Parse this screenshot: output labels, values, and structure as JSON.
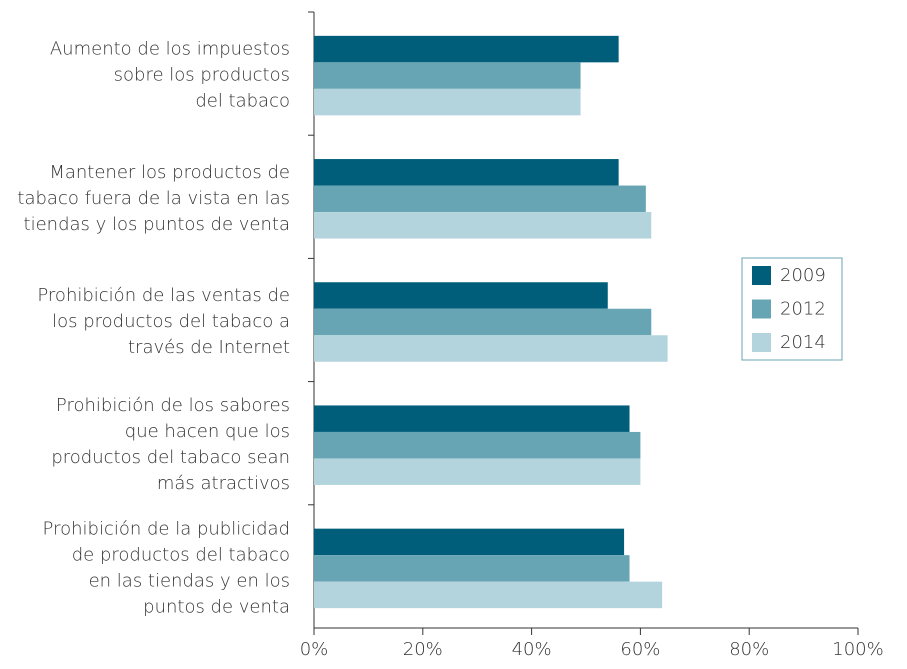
{
  "chart_data": {
    "type": "hbar",
    "categories": [
      [
        "Aumento de los impuestos",
        "sobre los productos",
        "del tabaco"
      ],
      [
        "Mantener los productos de",
        "tabaco fuera de la vista en las",
        "tiendas y los puntos de venta"
      ],
      [
        "Prohibición de las ventas de",
        "los productos del tabaco a",
        "través de Internet"
      ],
      [
        "Prohibición de los sabores",
        "que hacen que los",
        "productos del tabaco sean",
        "más atractivos"
      ],
      [
        "Prohibición de la publicidad",
        "de productos del tabaco",
        "en las tiendas y en los",
        "puntos de venta"
      ]
    ],
    "series": [
      {
        "name": "2009",
        "color": "#005e7a",
        "values": [
          56,
          56,
          54,
          58,
          57
        ]
      },
      {
        "name": "2012",
        "color": "#67a5b5",
        "values": [
          49,
          61,
          62,
          60,
          58
        ]
      },
      {
        "name": "2014",
        "color": "#b4d4dd",
        "values": [
          49,
          62,
          65,
          60,
          64
        ]
      }
    ],
    "xlim": [
      0,
      100
    ],
    "xticks": [
      {
        "value": 0,
        "label": "0%"
      },
      {
        "value": 20,
        "label": "20%"
      },
      {
        "value": 40,
        "label": "40%"
      },
      {
        "value": 60,
        "label": "60%"
      },
      {
        "value": 80,
        "label": "80%"
      },
      {
        "value": 100,
        "label": "100%"
      }
    ],
    "legend": "right"
  }
}
